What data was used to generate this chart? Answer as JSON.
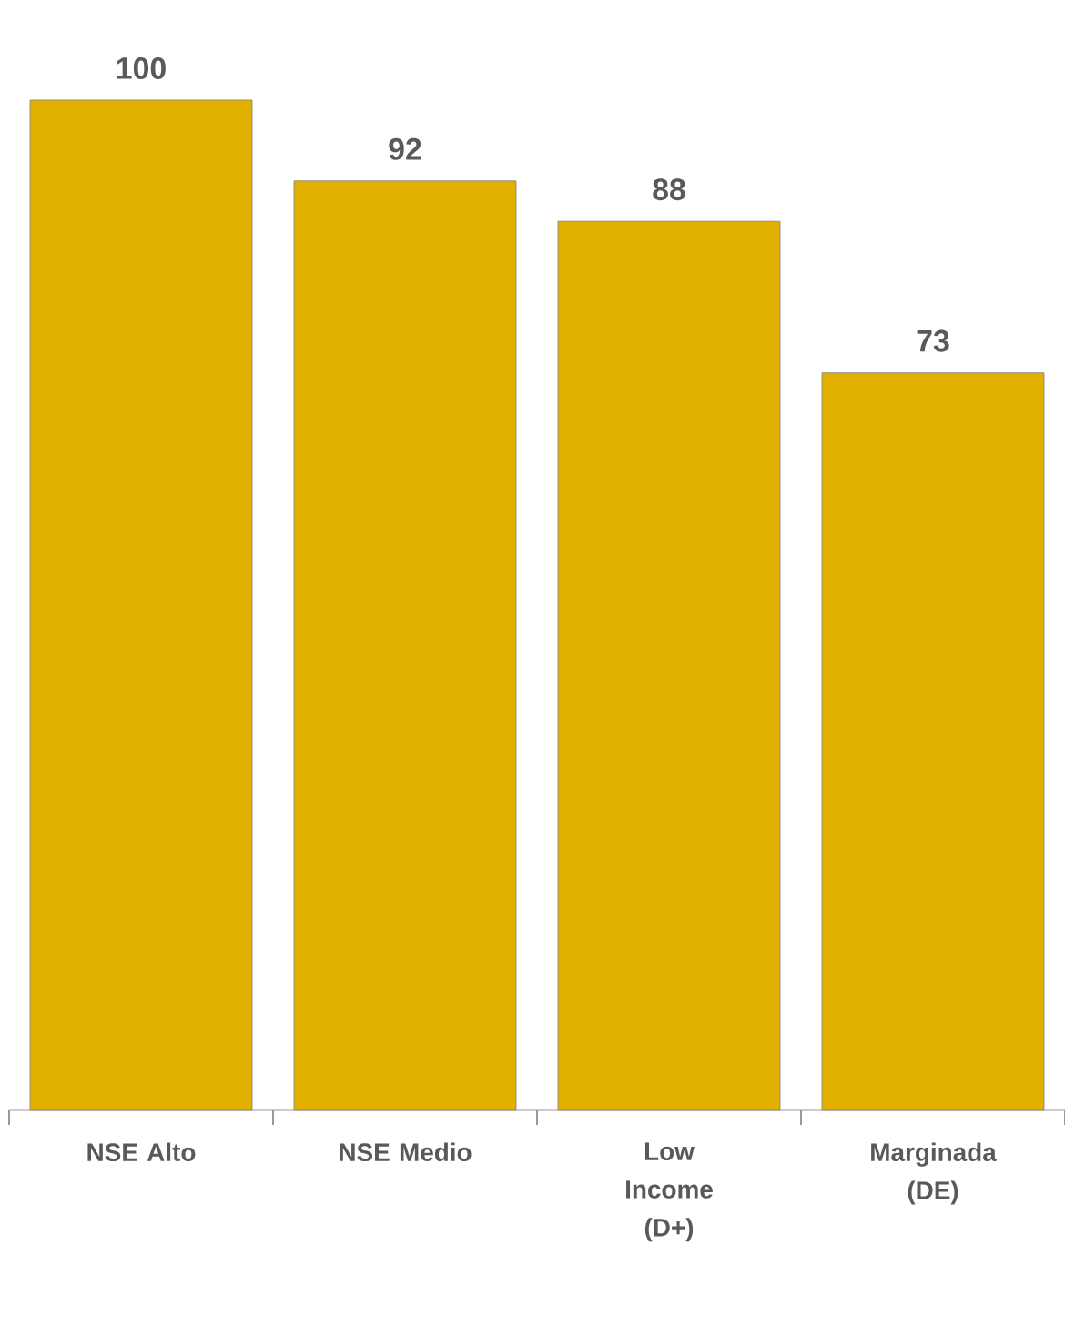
{
  "chart_data": {
    "type": "bar",
    "data_labels": true,
    "color": "#e2b000",
    "categories": [
      "NSE Alto",
      "NSE Medio",
      "Low Income (D+)",
      "Marginada (DE)"
    ],
    "values": [
      100,
      92,
      88,
      73
    ]
  }
}
